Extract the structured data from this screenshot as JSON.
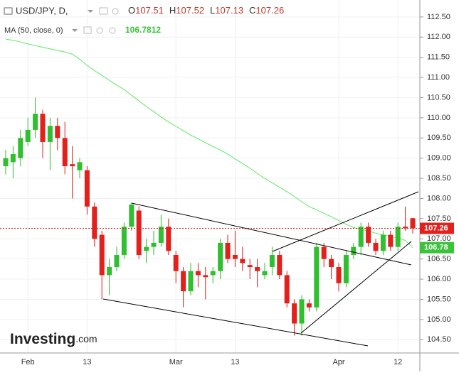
{
  "chart_data": {
    "type": "candlestick",
    "header": {
      "symbol": "USD/JPY, D,",
      "ohlc": [
        {
          "key": "O",
          "value": "107.51"
        },
        {
          "key": "H",
          "value": "107.52"
        },
        {
          "key": "L",
          "value": "107.13"
        },
        {
          "key": "C",
          "value": "107.26"
        }
      ]
    },
    "ma_header": {
      "name": "MA (50, close, 0)",
      "value": "106.7812"
    },
    "logo": {
      "main": "Investing",
      "suffix": ".com"
    },
    "categories": [
      null,
      null,
      null,
      "Feb",
      null,
      null,
      null,
      null,
      null,
      null,
      null,
      "13",
      null,
      null,
      null,
      null,
      null,
      null,
      null,
      null,
      null,
      null,
      null,
      "Mar",
      null,
      null,
      null,
      null,
      null,
      null,
      null,
      "13",
      null,
      null,
      null,
      null,
      null,
      null,
      null,
      null,
      null,
      null,
      null,
      null,
      null,
      "Apr",
      null,
      null,
      null,
      null,
      null,
      null,
      null,
      "12",
      null,
      null
    ],
    "open": [
      108.8,
      108.9,
      109.0,
      109.4,
      109.7,
      110.1,
      109.4,
      109.8,
      109.5,
      108.85,
      108.7,
      108.7,
      107.8,
      107.1,
      106.1,
      106.3,
      106.6,
      107.3,
      107.7,
      106.7,
      106.8,
      106.9,
      107.3,
      106.6,
      106.2,
      105.7,
      106.2,
      106.1,
      106.1,
      106.2,
      106.9,
      106.6,
      106.5,
      106.35,
      106.3,
      106.1,
      106.3,
      106.6,
      106.1,
      105.4,
      104.9,
      105.4,
      105.3,
      106.8,
      106.5,
      106.3,
      105.9,
      106.6,
      106.8,
      107.3,
      106.9,
      106.7,
      107.1,
      106.8,
      107.3,
      107.51
    ],
    "high": [
      109.2,
      109.3,
      109.7,
      110.0,
      110.5,
      110.2,
      110.0,
      110.0,
      109.9,
      109.3,
      109.0,
      108.8,
      107.9,
      107.2,
      106.5,
      106.8,
      107.4,
      107.9,
      107.8,
      107.0,
      107.2,
      107.6,
      107.5,
      106.7,
      106.3,
      106.4,
      106.4,
      106.3,
      106.3,
      107.0,
      107.1,
      107.2,
      106.8,
      106.5,
      106.5,
      106.4,
      106.8,
      106.7,
      106.2,
      105.5,
      105.6,
      105.5,
      106.9,
      106.9,
      106.6,
      106.4,
      106.7,
      106.9,
      107.4,
      107.4,
      107.0,
      107.2,
      107.2,
      107.4,
      107.8,
      107.52
    ],
    "low": [
      108.6,
      108.5,
      108.8,
      109.3,
      109.5,
      109.0,
      108.7,
      109.2,
      108.6,
      108.0,
      108.5,
      107.6,
      106.8,
      105.5,
      105.6,
      106.2,
      106.5,
      107.2,
      106.5,
      106.4,
      106.6,
      106.8,
      106.6,
      105.9,
      105.3,
      105.6,
      105.8,
      105.5,
      105.9,
      106.0,
      106.4,
      106.3,
      106.2,
      106.0,
      105.8,
      106.0,
      106.1,
      106.0,
      105.3,
      104.6,
      104.6,
      105.2,
      105.2,
      106.3,
      106.0,
      105.7,
      105.8,
      106.5,
      106.6,
      106.8,
      106.6,
      106.6,
      106.7,
      106.7,
      107.2,
      107.13
    ],
    "close": [
      109.0,
      109.1,
      109.5,
      109.7,
      110.1,
      109.4,
      109.8,
      109.5,
      108.8,
      108.8,
      108.9,
      107.8,
      107.0,
      106.1,
      106.3,
      106.6,
      107.3,
      107.85,
      106.6,
      106.8,
      106.9,
      107.3,
      106.7,
      106.2,
      105.7,
      106.2,
      106.1,
      106.05,
      106.2,
      106.9,
      106.5,
      106.5,
      106.4,
      106.3,
      106.2,
      106.2,
      106.6,
      106.1,
      105.4,
      104.9,
      105.5,
      105.3,
      106.8,
      106.5,
      106.3,
      105.9,
      106.6,
      106.8,
      107.3,
      106.9,
      106.7,
      107.1,
      106.8,
      107.3,
      107.26,
      107.26
    ],
    "ma": [
      111.95,
      111.92,
      111.88,
      111.83,
      111.79,
      111.75,
      111.71,
      111.67,
      111.63,
      111.58,
      111.45,
      111.3,
      111.17,
      111.05,
      110.93,
      110.81,
      110.7,
      110.56,
      110.42,
      110.28,
      110.15,
      110.02,
      109.9,
      109.79,
      109.68,
      109.57,
      109.48,
      109.38,
      109.29,
      109.2,
      109.1,
      108.98,
      108.87,
      108.75,
      108.62,
      108.5,
      108.39,
      108.28,
      108.17,
      108.05,
      107.92,
      107.8,
      107.72,
      107.63,
      107.55,
      107.45,
      107.36,
      107.28,
      107.24,
      107.19,
      107.14,
      107.1,
      107.06,
      107.02,
      106.96,
      106.7812
    ],
    "up_color": "#2fbf2f",
    "down_color": "#e3201b",
    "ma_color": "#5fe85f",
    "last_price_label": "107.26",
    "ma_label": "106.78",
    "ylim": [
      104.17,
      112.92
    ],
    "yticks": [
      {
        "value": 104.5,
        "label": "104.50"
      },
      {
        "value": 105,
        "label": "105.00"
      },
      {
        "value": 105.5,
        "label": "105.50"
      },
      {
        "value": 106,
        "label": "106.00"
      },
      {
        "value": 106.5,
        "label": "106.50"
      },
      {
        "value": 107,
        "label": "107.00"
      },
      {
        "value": 107.5,
        "label": "107.50"
      },
      {
        "value": 108,
        "label": "108.00"
      },
      {
        "value": 108.5,
        "label": "108.50"
      },
      {
        "value": 109,
        "label": "109.00"
      },
      {
        "value": 109.5,
        "label": "109.50"
      },
      {
        "value": 110,
        "label": "110.00"
      },
      {
        "value": 110.5,
        "label": "110.50"
      },
      {
        "value": 111,
        "label": "111.00"
      },
      {
        "value": 111.5,
        "label": "111.50"
      },
      {
        "value": 112,
        "label": "112.00"
      },
      {
        "value": 112.5,
        "label": "112.50"
      }
    ],
    "grid": true
  }
}
